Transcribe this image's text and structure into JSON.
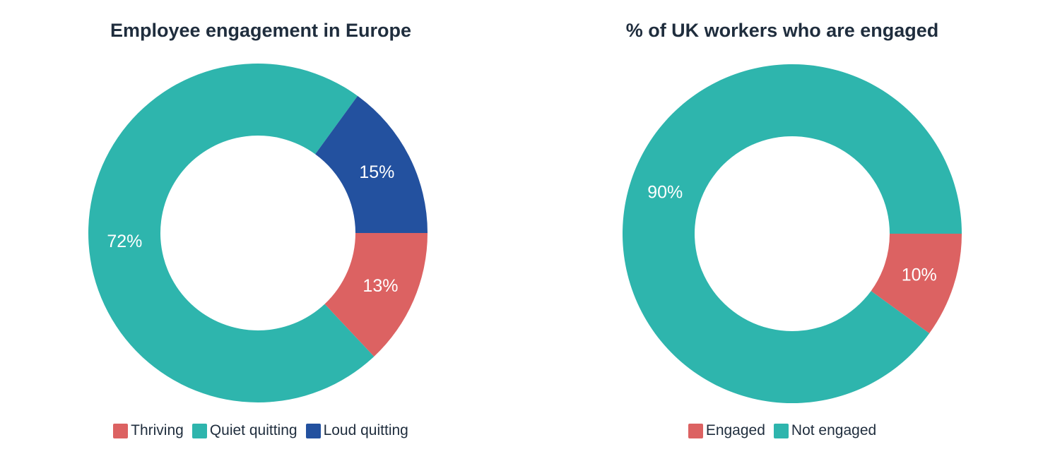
{
  "chart_data": [
    {
      "type": "pie",
      "title": "Employee engagement in Europe",
      "donut": true,
      "legend_position": "bottom",
      "categories": [
        "Thriving",
        "Quiet quitting",
        "Loud quitting"
      ],
      "values": [
        13,
        72,
        15
      ],
      "labels": [
        "13%",
        "72%",
        "15%"
      ],
      "colors": [
        "#dc6262",
        "#2eb5ad",
        "#23519f"
      ]
    },
    {
      "type": "pie",
      "title": "% of UK workers who are engaged",
      "donut": true,
      "legend_position": "bottom",
      "categories": [
        "Engaged",
        "Not engaged"
      ],
      "values": [
        10,
        90
      ],
      "labels": [
        "10%",
        "90%"
      ],
      "colors": [
        "#dc6262",
        "#2eb5ad"
      ]
    }
  ]
}
